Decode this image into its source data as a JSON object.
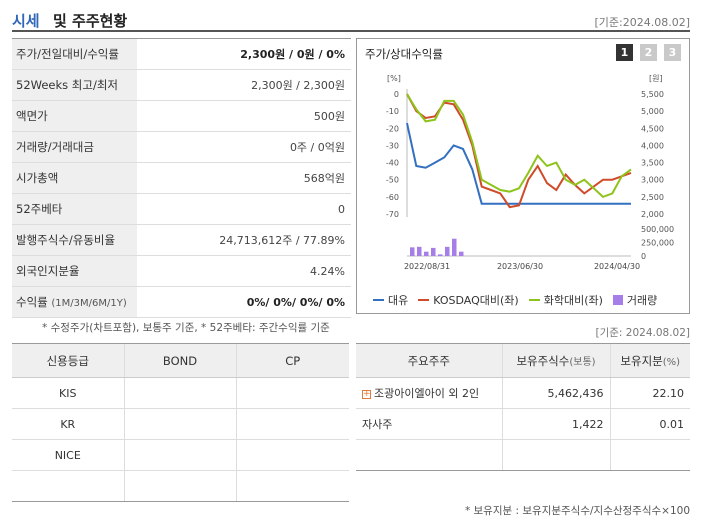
{
  "header": {
    "title_a": "시세",
    "title_b": "및 주주현황",
    "date": "[기준:2024.08.02]"
  },
  "quote_rows": [
    {
      "key": "주가/전일대비/수익률",
      "value_main": "2,300",
      "value_rest": "원 / 0원 / 0%",
      "bold": true
    },
    {
      "key": "52Weeks 최고/최저",
      "value": "2,300원 / 2,300원"
    },
    {
      "key": "액면가",
      "value": "500원"
    },
    {
      "key": "거래량/거래대금",
      "value": "0주 / 0억원"
    },
    {
      "key": "시가총액",
      "value": "568억원"
    },
    {
      "key": "52주베타",
      "value": "0"
    },
    {
      "key": "발행주식수/유동비율",
      "value": "24,713,612주 / 77.89%"
    },
    {
      "key": "외국인지분율",
      "value": "4.24%"
    },
    {
      "key": "수익률",
      "key_small": "(1M/3M/6M/1Y)",
      "value": "0%/ 0%/ 0%/ 0%",
      "bold": true
    }
  ],
  "note1": "* 수정주가(차트포함), 보통주 기준, * 52주베타: 주간수익률 기준",
  "chart_panel": {
    "title": "주가/상대수익률",
    "tabs": [
      "1",
      "2",
      "3"
    ],
    "selected_tab": "1"
  },
  "chart_data": {
    "type": "line",
    "left_unit": "[%]",
    "right_unit": "[원]",
    "left_ticks": [
      "0",
      "-10",
      "-20",
      "-30",
      "-40",
      "-50",
      "-60",
      "-70"
    ],
    "right_ticks": [
      "5,500",
      "5,000",
      "4,500",
      "4,000",
      "3,500",
      "3,000",
      "2,500",
      "2,000"
    ],
    "volume_ticks": [
      "500,000",
      "250,000",
      "0"
    ],
    "x_ticks": [
      "2022/08/31",
      "2023/06/30",
      "2024/04/30"
    ],
    "ylim_left": [
      -70,
      0
    ],
    "series": [
      {
        "name": "대유",
        "color": "#3470c0",
        "values": [
          -17,
          -42,
          -43,
          -40,
          -37,
          -30,
          -32,
          -44,
          -64,
          -64,
          -64,
          -64,
          -64,
          -64,
          -64,
          -64,
          -64,
          -64,
          -64,
          -64,
          -64,
          -64,
          -64,
          -64,
          -64
        ]
      },
      {
        "name": "KOSDAQ대비(좌)",
        "color": "#d04b2a",
        "values": [
          0,
          -10,
          -14,
          -13,
          -5,
          -6,
          -15,
          -30,
          -54,
          -56,
          -58,
          -66,
          -65,
          -50,
          -42,
          -52,
          -56,
          -47,
          -53,
          -58,
          -54,
          -50,
          -50,
          -48,
          -46
        ]
      },
      {
        "name": "화학대비(좌)",
        "color": "#8ec31b",
        "values": [
          0,
          -9,
          -16,
          -15,
          -4,
          -4,
          -12,
          -28,
          -50,
          -53,
          -56,
          -57,
          -55,
          -46,
          -36,
          -42,
          -40,
          -50,
          -53,
          -50,
          -55,
          -60,
          -58,
          -48,
          -44
        ]
      }
    ],
    "volume": {
      "name": "거래량",
      "color": "#a67ee8",
      "values": [
        160000,
        170000,
        80000,
        150000,
        30000,
        170000,
        320000,
        80000
      ]
    }
  },
  "legend": [
    "대유",
    "KOSDAQ대비(좌)",
    "화학대비(좌)",
    "거래량"
  ],
  "date2": "[기준: 2024.08.02]",
  "credit": {
    "headers": [
      "신용등급",
      "BOND",
      "CP"
    ],
    "rows": [
      [
        "KIS",
        "",
        ""
      ],
      [
        "KR",
        "",
        ""
      ],
      [
        "NICE",
        "",
        ""
      ],
      [
        "",
        "",
        ""
      ]
    ]
  },
  "holders": {
    "headers": [
      "주요주주",
      "보유주식수",
      "(보통)",
      "보유지분",
      "(%)"
    ],
    "rows": [
      {
        "name": "조광아이엘아이 외 2인",
        "shares": "5,462,436",
        "pct": "22.10",
        "expand": true
      },
      {
        "name": "자사주",
        "shares": "1,422",
        "pct": "0.01"
      },
      {
        "name": "",
        "shares": "",
        "pct": ""
      }
    ]
  },
  "note2": "* 보유지분 : 보유지분주식수/지수산정주식수×100"
}
